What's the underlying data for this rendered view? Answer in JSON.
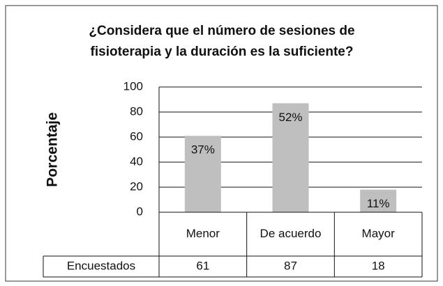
{
  "chart_data": {
    "type": "bar",
    "title": [
      "¿Considera que el número de sesiones de",
      "fisioterapia y la duración es la suficiente?"
    ],
    "y_label": "Porcentaje",
    "categories": [
      "Menor",
      "De acuerdo",
      "Mayor"
    ],
    "series": [
      {
        "name": "Encuestados",
        "color": "#bfbfbf",
        "values": [
          61,
          87,
          18
        ]
      }
    ],
    "annotations": [
      "37%",
      "52%",
      "11%"
    ],
    "ylim": [
      0,
      100
    ],
    "yticks": [
      0,
      20,
      40,
      60,
      80,
      100
    ],
    "grid": true,
    "data_table": true
  }
}
